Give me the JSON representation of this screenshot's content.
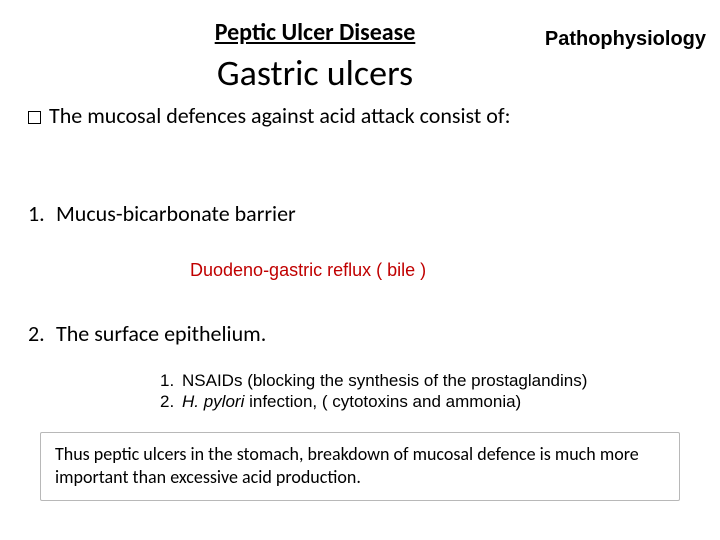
{
  "title": "Peptic Ulcer Disease",
  "subtitle": "Gastric ulcers",
  "topic": "Pathophysiology",
  "bullet": "The mucosal defences against acid attack consist of:",
  "item1_num": "1.",
  "item1_text": "Mucus-bicarbonate barrier",
  "reflux": "Duodeno-gastric reflux ( bile )",
  "item2_num": "2.",
  "item2_text": "The  surface epithelium.",
  "sub1_num": "1.",
  "sub1_a": "NSAIDs",
  "sub1_b": " (blocking the synthesis of the prostaglandins)",
  "sub2_num": "2.",
  "sub2_a": "H. pylori",
  "sub2_b": " infection, ( cytotoxins and ammonia)",
  "footer": "Thus peptic ulcers in the stomach, breakdown of mucosal defence is much more important than excessive acid production.",
  "colors": {
    "reflux_color": "#c00000",
    "background": "#ffffff",
    "text": "#000000",
    "box_border": "#b8b8b8"
  },
  "typography": {
    "title_fontsize": 24,
    "subtitle_fontsize": 36,
    "topic_fontsize": 20,
    "body_fontsize": 22,
    "reflux_fontsize": 18,
    "sublist_fontsize": 17,
    "footer_fontsize": 18
  }
}
